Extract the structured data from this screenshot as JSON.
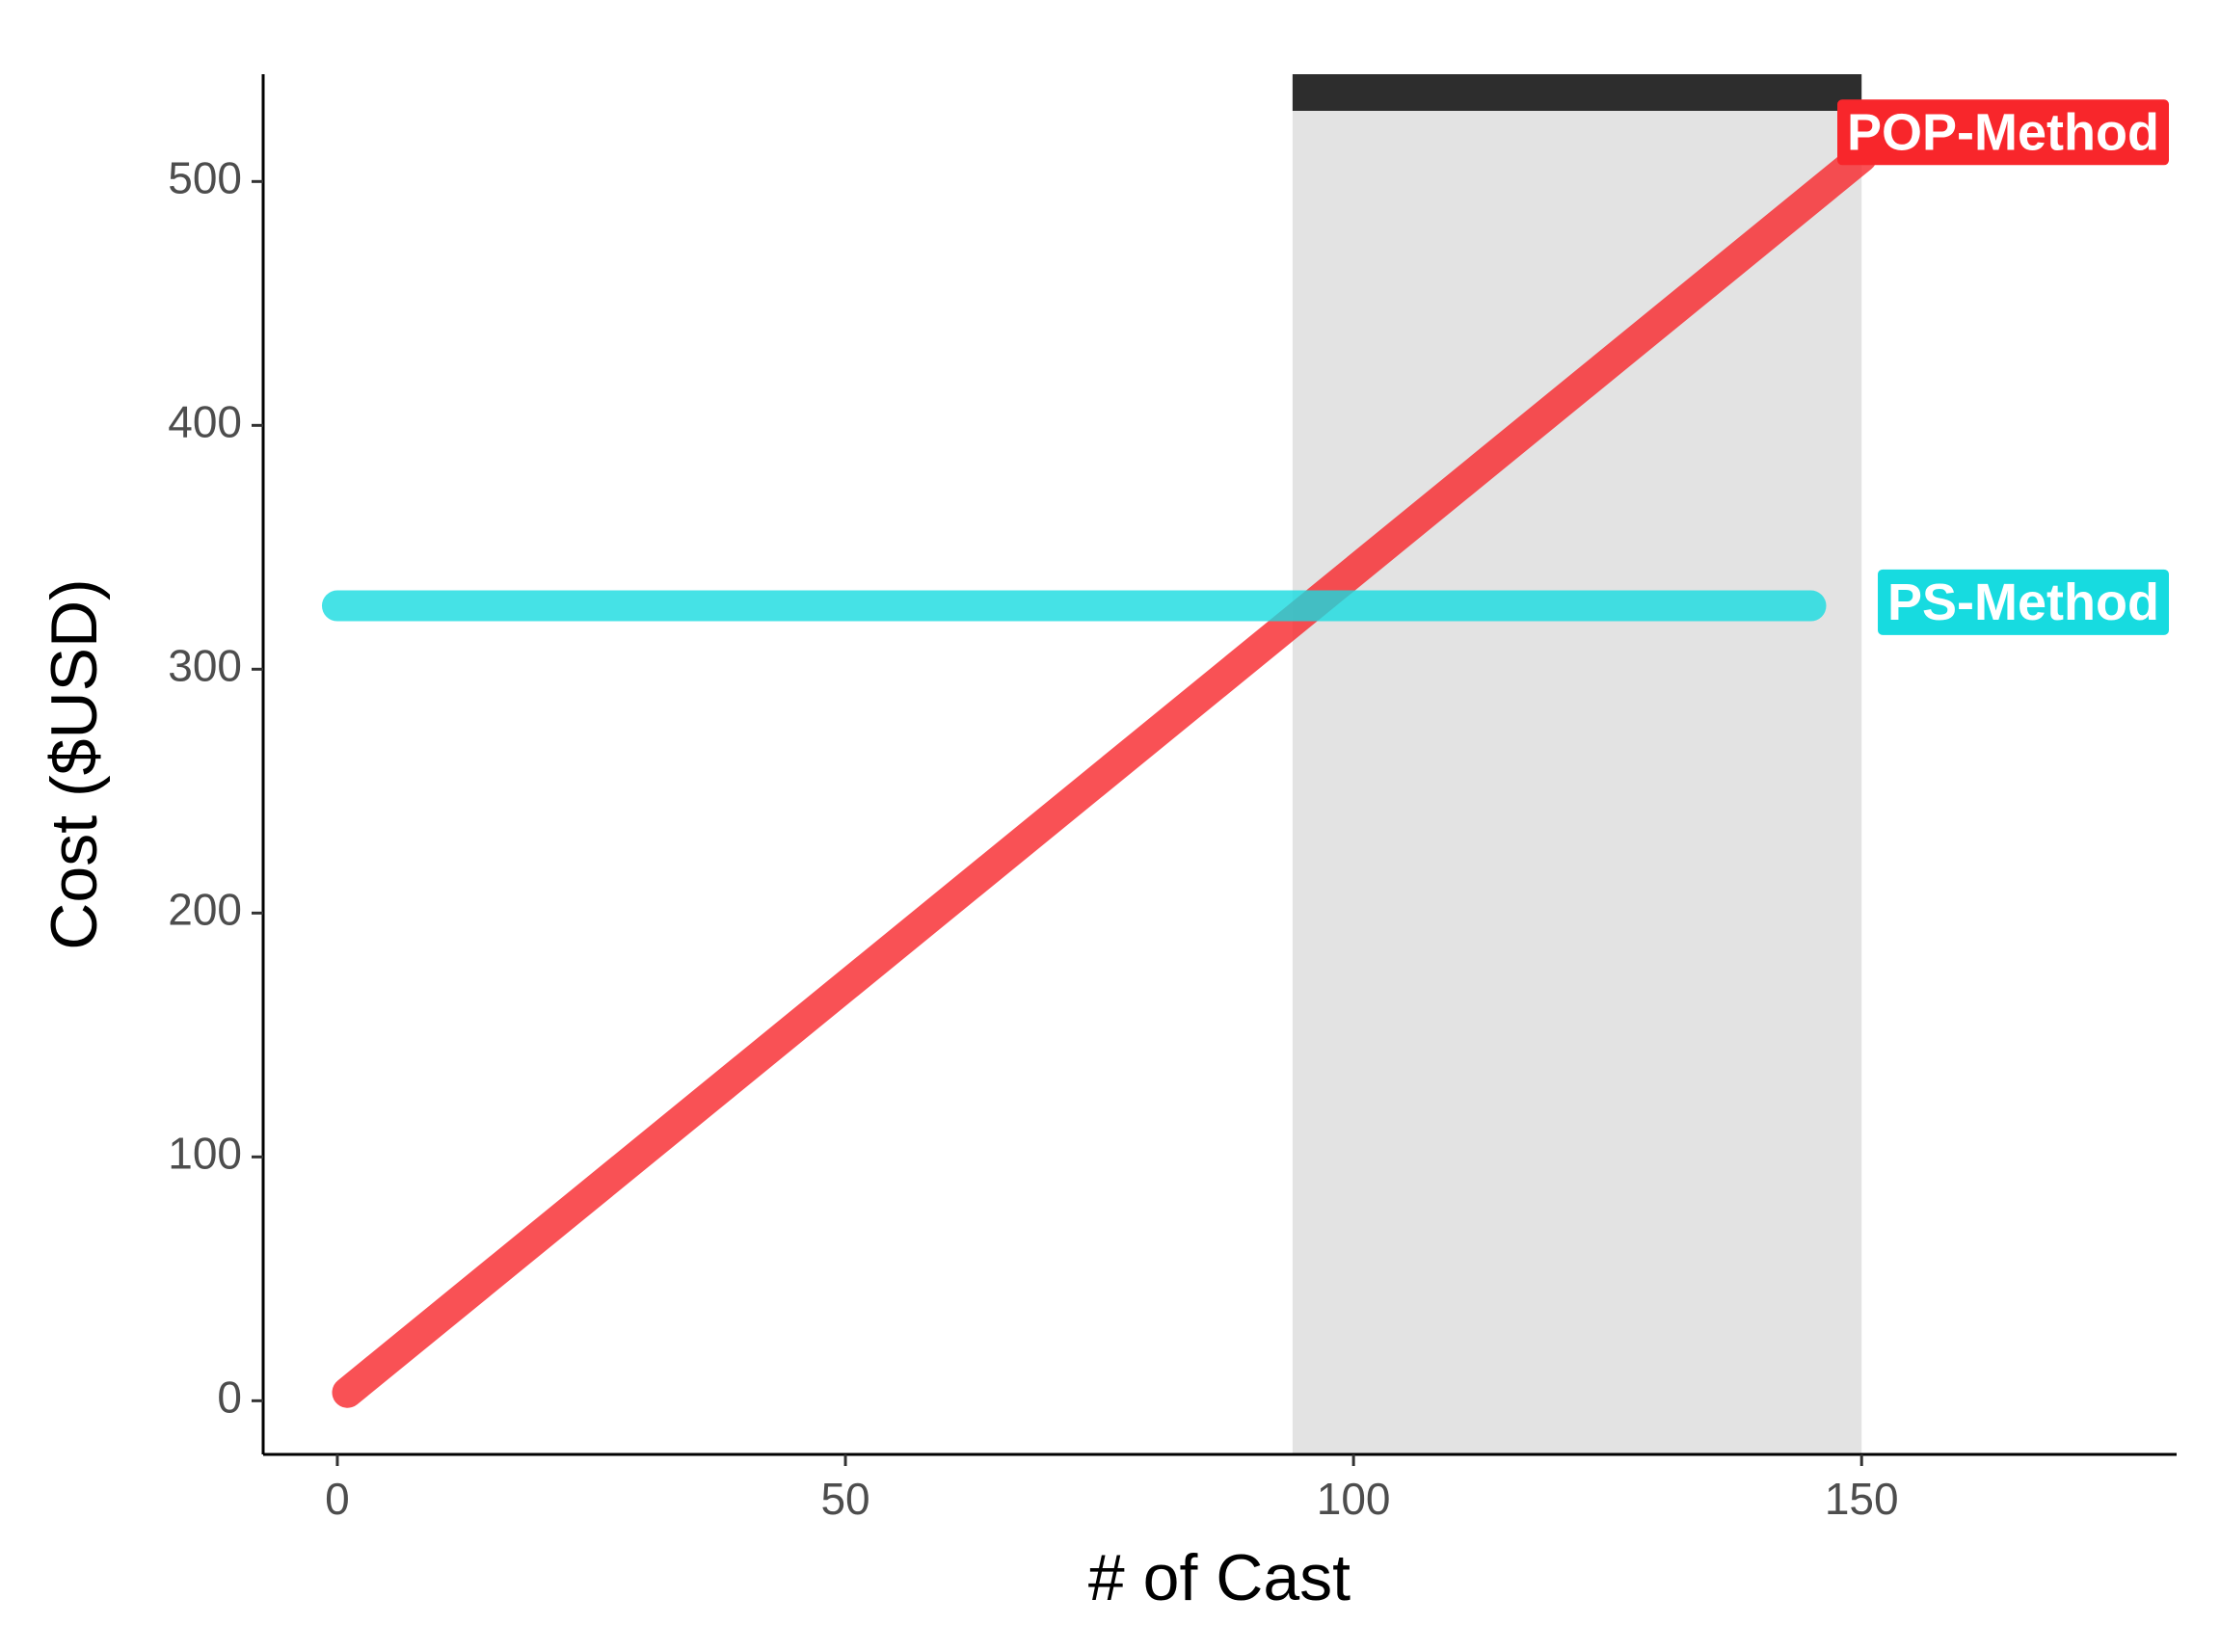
{
  "chart_data": {
    "type": "line",
    "x_label": "# of Cast",
    "y_label": "Cost ($USD)",
    "xlim": [
      -7.3,
      181
    ],
    "ylim": [
      -22,
      544
    ],
    "xticks": [
      0,
      50,
      100,
      150
    ],
    "yticks": [
      0,
      100,
      200,
      300,
      400,
      500
    ],
    "highlight": [
      94,
      150
    ],
    "series": [
      {
        "name": "POP-Method",
        "color": "#f8262b",
        "x": [
          1,
          150
        ],
        "values": [
          3.4,
          510
        ]
      },
      {
        "name": "PS-Method",
        "color": "#17dbe0",
        "x": [
          0,
          145
        ],
        "values": [
          326,
          326
        ]
      }
    ]
  }
}
